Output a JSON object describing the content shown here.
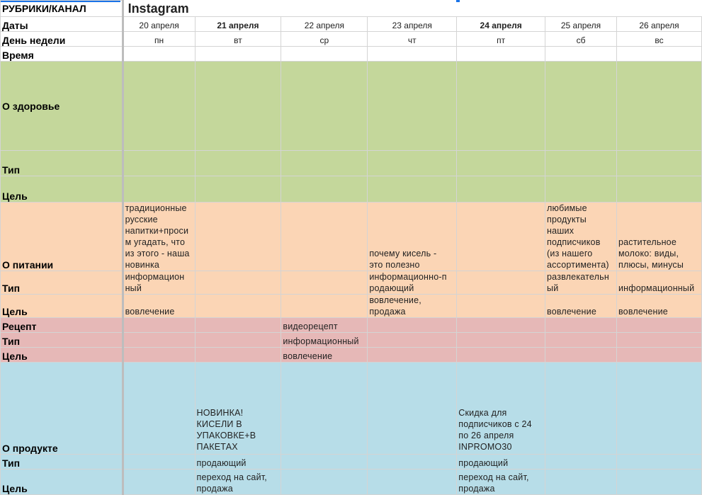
{
  "header": {
    "corner": "РУБРИКИ/КАНАЛ",
    "channel": "Instagram"
  },
  "row_labels": {
    "dates": "Даты",
    "weekday": "День недели",
    "time": "Время"
  },
  "columns": [
    {
      "date": "20 апреля",
      "weekday": "пн",
      "bold": false
    },
    {
      "date": "21 апреля",
      "weekday": "вт",
      "bold": true
    },
    {
      "date": "22 апреля",
      "weekday": "ср",
      "bold": false
    },
    {
      "date": "23 апреля",
      "weekday": "чт",
      "bold": false
    },
    {
      "date": "24 апреля",
      "weekday": "пт",
      "bold": true
    },
    {
      "date": "25 апреля",
      "weekday": "сб",
      "bold": false
    },
    {
      "date": "26 апреля",
      "weekday": "вс",
      "bold": false
    }
  ],
  "sections": {
    "health": {
      "label": "О здоровье",
      "type_label": "Тип",
      "goal_label": "Цель"
    },
    "nutrition": {
      "label": "О питании",
      "type_label": "Тип",
      "goal_label": "Цель",
      "content": [
        "традиционные\nрусские\nнапитки+проси\nм угадать, что\nиз этого - наша\nновинка",
        "",
        "",
        "почему кисель -\nэто полезно",
        "",
        "любимые\nпродукты\nнаших\nподписчиков\n(из нашего\nассортимента)",
        "растительное\nмолоко: виды,\nплюсы, минусы"
      ],
      "type": [
        "информацион\nный",
        "",
        "",
        "информационно-п\nродающий",
        "",
        "развлекательн\nый",
        "информационный"
      ],
      "goal": [
        "вовлечение",
        "",
        "",
        "вовлечение,\nпродажа",
        "",
        "вовлечение",
        "вовлечение"
      ]
    },
    "recipe": {
      "label": "Рецепт",
      "type_label": "Тип",
      "goal_label": "Цель",
      "content": [
        "",
        "",
        "видеорецепт",
        "",
        "",
        "",
        ""
      ],
      "type": [
        "",
        "",
        "информационный",
        "",
        "",
        "",
        ""
      ],
      "goal": [
        "",
        "",
        "вовлечение",
        "",
        "",
        "",
        ""
      ]
    },
    "product": {
      "label": "О продукте",
      "type_label": "Тип",
      "goal_label": "Цель",
      "content": [
        "",
        "НОВИНКА!\nКИСЕЛИ В\nУПАКОВКЕ+В\nПАКЕТАХ",
        "",
        "",
        "Скидка для\nподписчиков с 24\nпо 26 апреля\nINPROMO30",
        "",
        ""
      ],
      "type": [
        "",
        "продающий",
        "",
        "",
        "продающий",
        "",
        ""
      ],
      "goal": [
        "",
        "переход на сайт,\nпродажа",
        "",
        "",
        "переход на сайт,\nпродажа",
        "",
        ""
      ]
    }
  },
  "colors": {
    "health": "#c4d79b",
    "nutrition": "#fbd5b5",
    "recipe": "#e6b8b7",
    "product": "#b7dde8",
    "selection": "#1a73e8"
  }
}
